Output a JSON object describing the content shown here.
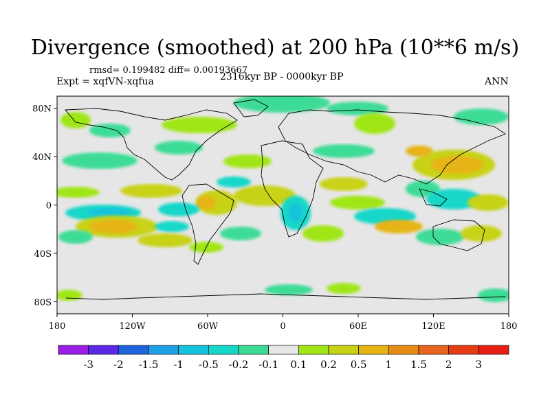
{
  "title": "Divergence (smoothed) at 200 hPa (10**6 m/s)",
  "stats": "rmsd= 0.199482 diff= 0.00193667",
  "experiment": "Expt = xqfVN-xqfua",
  "period": "2316kyr BP - 0000kyr BP",
  "season": "ANN",
  "x_ticks": [
    "180",
    "120W",
    "60W",
    "0",
    "60E",
    "120E",
    "180"
  ],
  "y_ticks": [
    "80N",
    "40N",
    "0",
    "40S",
    "80S"
  ],
  "colorbar": {
    "labels": [
      "-3",
      "-2",
      "-1.5",
      "-1",
      "-0.5",
      "-0.2",
      "-0.1",
      "0.1",
      "0.2",
      "0.5",
      "1",
      "1.5",
      "2",
      "3"
    ],
    "colors": [
      "#9a1ee6",
      "#5a28e6",
      "#1e64dc",
      "#1ea0e6",
      "#14c3dc",
      "#14d7c8",
      "#3cdc96",
      "#e6e6e6",
      "#a0e614",
      "#c8d214",
      "#e6b414",
      "#e68c14",
      "#e6641e",
      "#e63c14",
      "#e61e14"
    ]
  },
  "palette": {
    "neutral": "#e6e6e6",
    "neg1": "#3cdc96",
    "neg2": "#14d7c8",
    "neg3": "#14c3dc",
    "pos1": "#a0e614",
    "pos2": "#c8d214",
    "pos3": "#e6b414",
    "pos4": "#e68c14"
  }
}
